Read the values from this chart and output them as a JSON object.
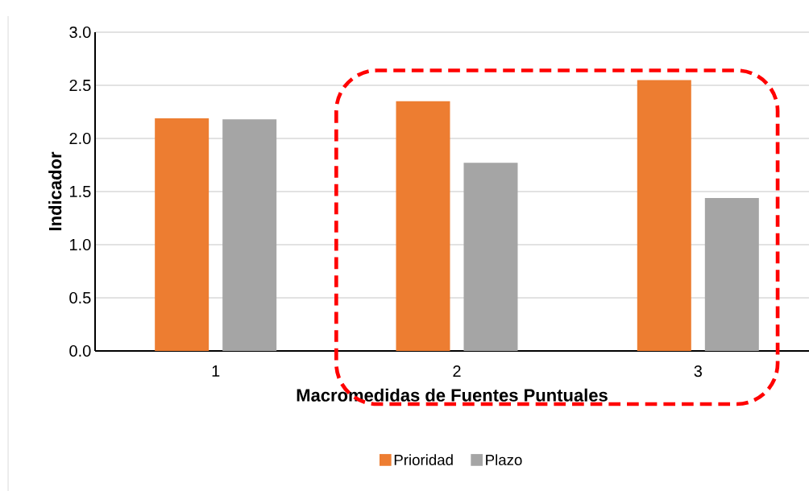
{
  "chart_data": {
    "type": "bar",
    "xlabel": "Macromedidas de Fuentes Puntuales",
    "ylabel": "Indicador",
    "categories": [
      "1",
      "2",
      "3"
    ],
    "series": [
      {
        "name": "Prioridad",
        "color": "#ed7d31",
        "values": [
          2.19,
          2.35,
          2.55
        ]
      },
      {
        "name": "Plazo",
        "color": "#a5a5a5",
        "values": [
          2.18,
          1.77,
          1.44
        ]
      }
    ],
    "ylim": [
      0,
      3
    ],
    "yticks": [
      {
        "value": 0,
        "label": "0.0"
      },
      {
        "value": 0.5,
        "label": "0.5"
      },
      {
        "value": 1,
        "label": "1.0"
      },
      {
        "value": 1.5,
        "label": "1.5"
      },
      {
        "value": 2,
        "label": "2.0"
      },
      {
        "value": 2.5,
        "label": "2.5"
      },
      {
        "value": 3,
        "label": "3.0"
      }
    ],
    "grid": "y",
    "legend": "bottom"
  }
}
